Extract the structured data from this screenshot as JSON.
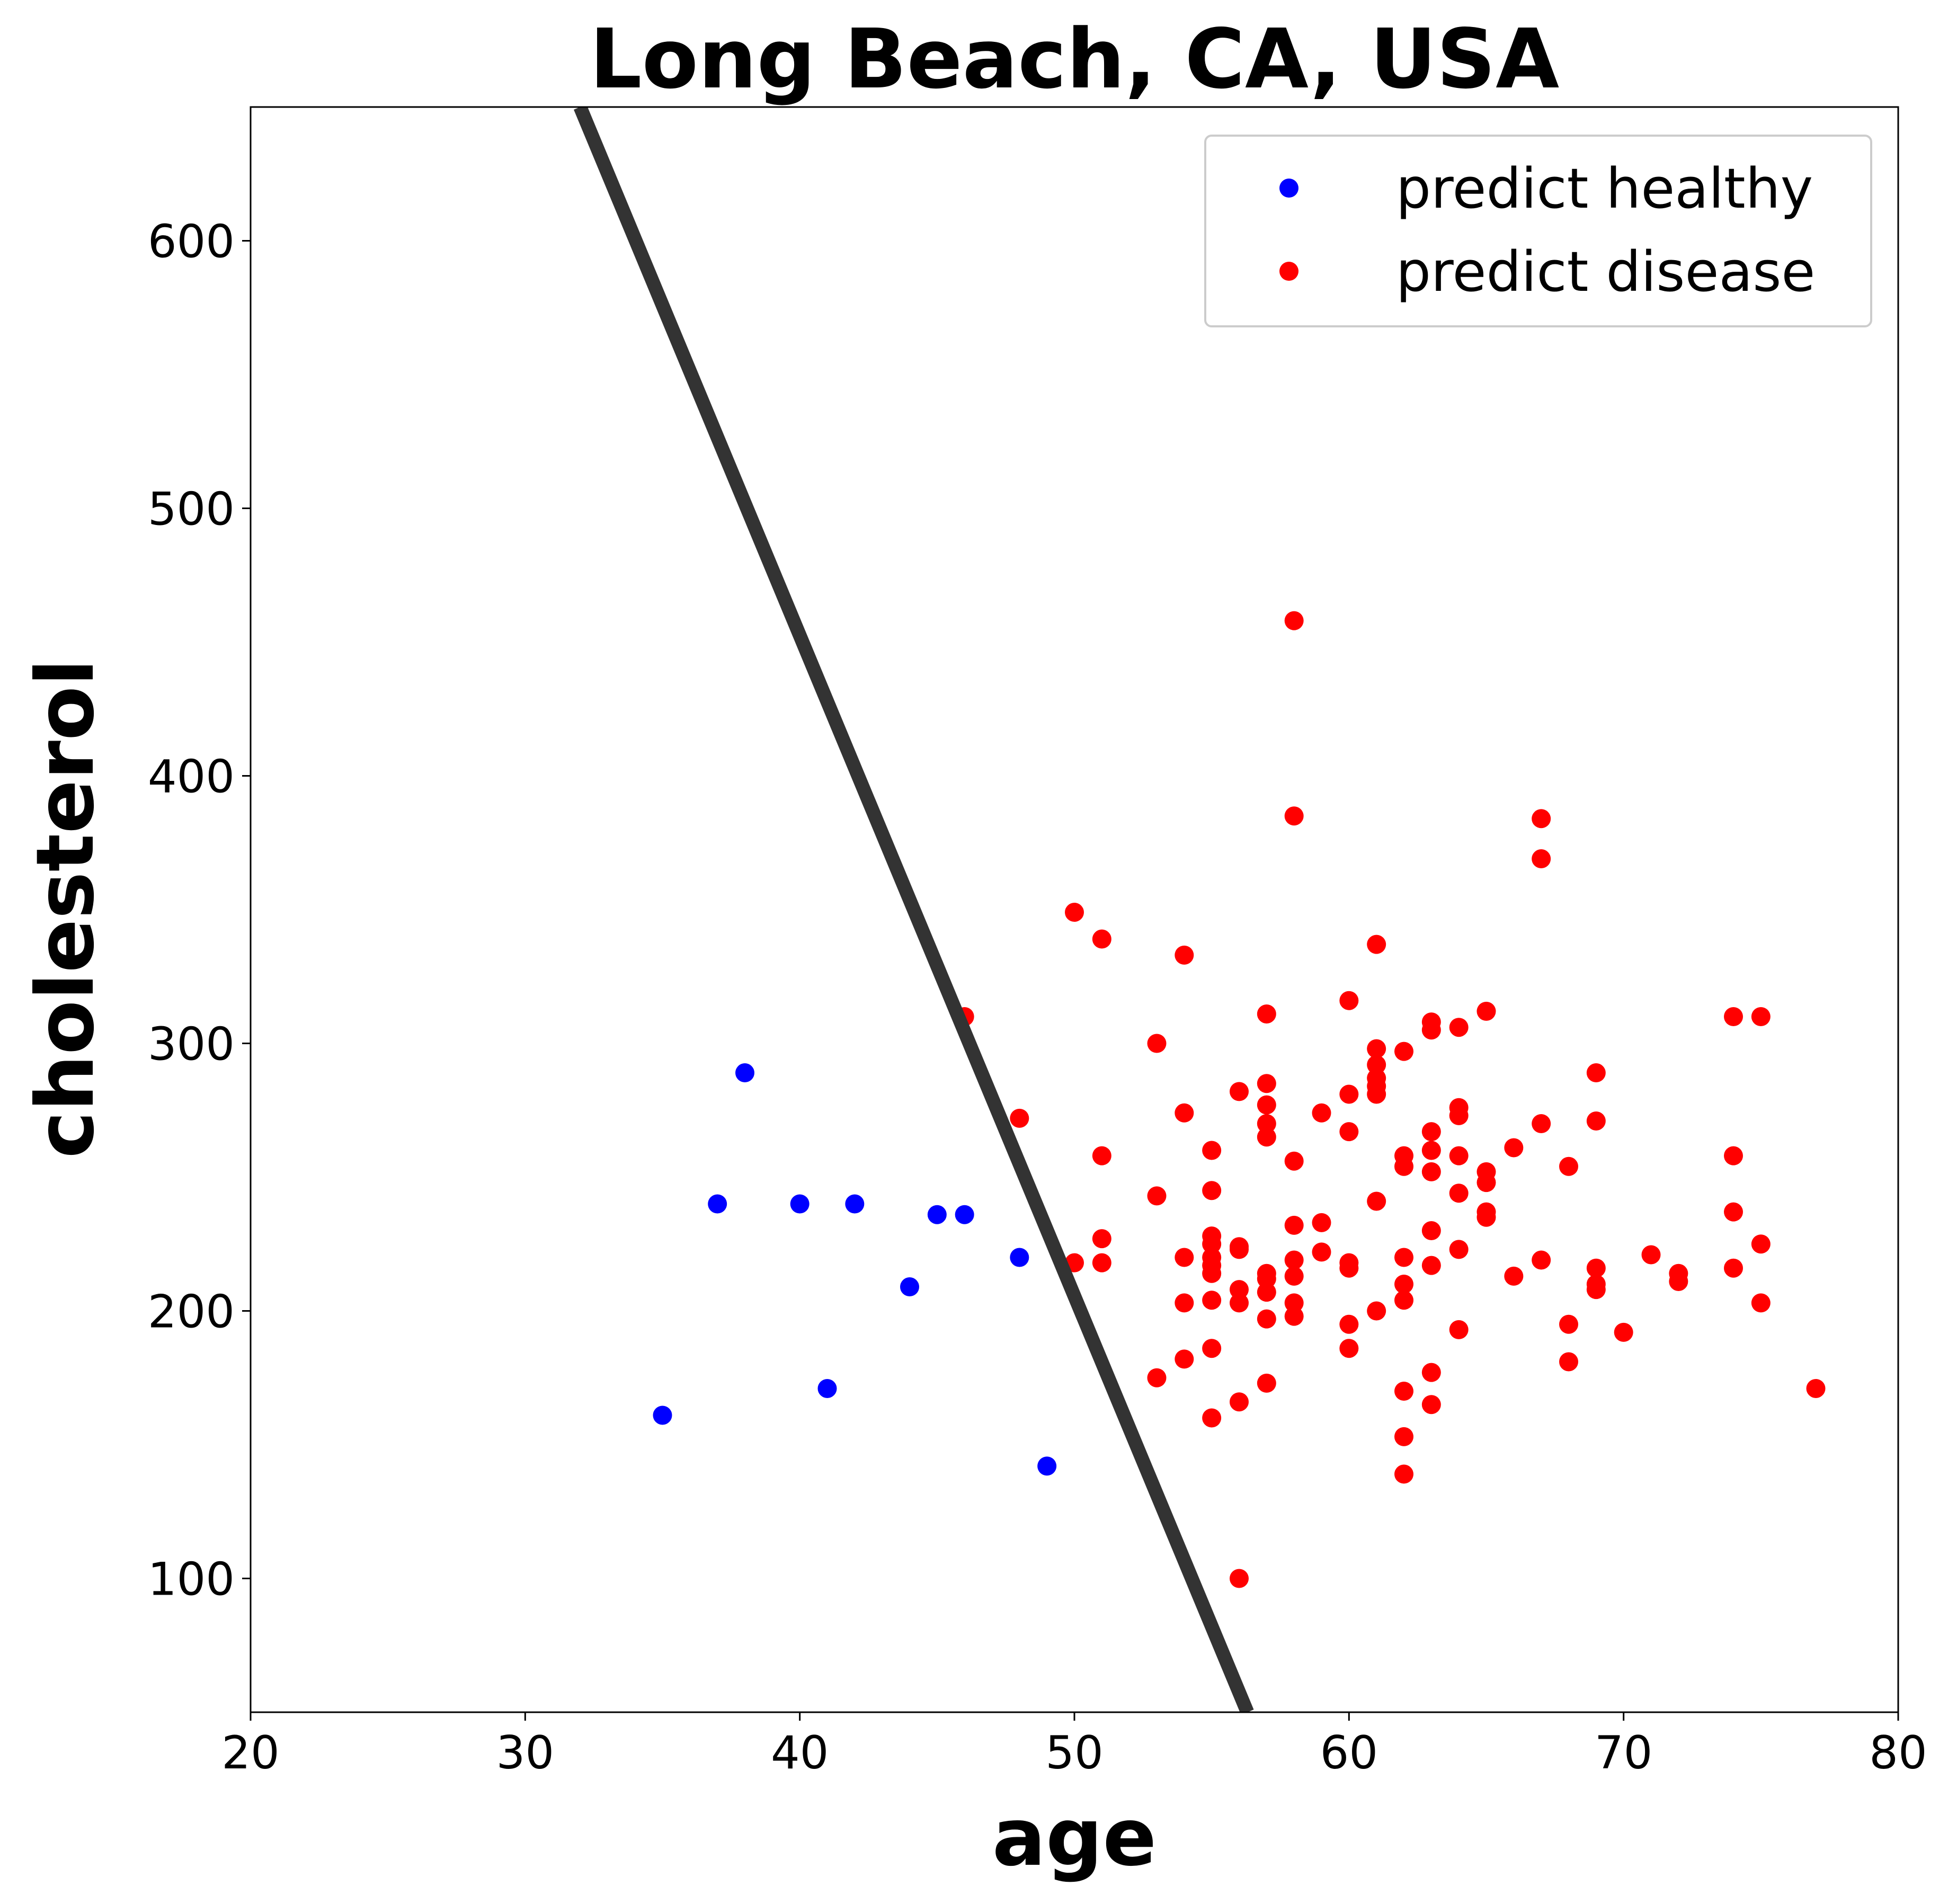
{
  "chart_data": {
    "type": "scatter",
    "title": "Long Beach, CA, USA",
    "xlabel": "age",
    "ylabel": "cholesterol",
    "xlim": [
      20,
      80
    ],
    "ylim": [
      50,
      650
    ],
    "xticks": [
      20,
      30,
      40,
      50,
      60,
      70,
      80
    ],
    "yticks": [
      100,
      200,
      300,
      400,
      500,
      600
    ],
    "grid": false,
    "legend_position": "top-right",
    "decision_boundary": {
      "color": "#333333",
      "points": [
        [
          32.0,
          650
        ],
        [
          56.3,
          50
        ]
      ]
    },
    "series": [
      {
        "name": "predict healthy",
        "color": "#0000ff",
        "points": [
          [
            35,
            161
          ],
          [
            37,
            240
          ],
          [
            38,
            289
          ],
          [
            40,
            240
          ],
          [
            41,
            171
          ],
          [
            42,
            240
          ],
          [
            44,
            209
          ],
          [
            45,
            236
          ],
          [
            46,
            236
          ],
          [
            48,
            220
          ],
          [
            49,
            142
          ]
        ]
      },
      {
        "name": "predict disease",
        "color": "#ff0000",
        "points": [
          [
            46,
            310
          ],
          [
            48,
            272
          ],
          [
            50,
            349
          ],
          [
            50,
            218
          ],
          [
            51,
            339
          ],
          [
            51,
            258
          ],
          [
            51,
            227
          ],
          [
            51,
            218
          ],
          [
            53,
            300
          ],
          [
            53,
            243
          ],
          [
            53,
            175
          ],
          [
            54,
            333
          ],
          [
            54,
            274
          ],
          [
            54,
            220
          ],
          [
            54,
            203
          ],
          [
            54,
            182
          ],
          [
            55,
            260
          ],
          [
            55,
            245
          ],
          [
            55,
            228
          ],
          [
            55,
            225
          ],
          [
            55,
            220
          ],
          [
            55,
            217
          ],
          [
            55,
            214
          ],
          [
            55,
            204
          ],
          [
            55,
            186
          ],
          [
            55,
            160
          ],
          [
            56,
            282
          ],
          [
            56,
            224
          ],
          [
            56,
            223
          ],
          [
            56,
            208
          ],
          [
            56,
            203
          ],
          [
            56,
            166
          ],
          [
            56,
            100
          ],
          [
            57,
            311
          ],
          [
            57,
            285
          ],
          [
            57,
            277
          ],
          [
            57,
            270
          ],
          [
            57,
            265
          ],
          [
            57,
            214
          ],
          [
            57,
            212
          ],
          [
            57,
            207
          ],
          [
            57,
            197
          ],
          [
            57,
            173
          ],
          [
            58,
            458
          ],
          [
            58,
            385
          ],
          [
            58,
            256
          ],
          [
            58,
            232
          ],
          [
            58,
            219
          ],
          [
            58,
            213
          ],
          [
            58,
            203
          ],
          [
            58,
            198
          ],
          [
            59,
            274
          ],
          [
            59,
            233
          ],
          [
            59,
            222
          ],
          [
            60,
            316
          ],
          [
            60,
            281
          ],
          [
            60,
            267
          ],
          [
            60,
            218
          ],
          [
            60,
            216
          ],
          [
            60,
            195
          ],
          [
            60,
            186
          ],
          [
            61,
            337
          ],
          [
            61,
            298
          ],
          [
            61,
            292
          ],
          [
            61,
            287
          ],
          [
            61,
            284
          ],
          [
            61,
            281
          ],
          [
            61,
            241
          ],
          [
            61,
            200
          ],
          [
            62,
            297
          ],
          [
            62,
            258
          ],
          [
            62,
            254
          ],
          [
            62,
            220
          ],
          [
            62,
            210
          ],
          [
            62,
            204
          ],
          [
            62,
            170
          ],
          [
            62,
            153
          ],
          [
            62,
            139
          ],
          [
            63,
            308
          ],
          [
            63,
            305
          ],
          [
            63,
            267
          ],
          [
            63,
            260
          ],
          [
            63,
            252
          ],
          [
            63,
            230
          ],
          [
            63,
            217
          ],
          [
            63,
            177
          ],
          [
            63,
            165
          ],
          [
            64,
            306
          ],
          [
            64,
            276
          ],
          [
            64,
            273
          ],
          [
            64,
            258
          ],
          [
            64,
            244
          ],
          [
            64,
            223
          ],
          [
            64,
            193
          ],
          [
            65,
            312
          ],
          [
            65,
            252
          ],
          [
            65,
            248
          ],
          [
            65,
            237
          ],
          [
            65,
            235
          ],
          [
            66,
            261
          ],
          [
            66,
            213
          ],
          [
            67,
            384
          ],
          [
            67,
            369
          ],
          [
            67,
            270
          ],
          [
            67,
            219
          ],
          [
            68,
            254
          ],
          [
            68,
            195
          ],
          [
            68,
            181
          ],
          [
            69,
            289
          ],
          [
            69,
            271
          ],
          [
            69,
            216
          ],
          [
            69,
            210
          ],
          [
            69,
            208
          ],
          [
            70,
            192
          ],
          [
            71,
            221
          ],
          [
            72,
            214
          ],
          [
            72,
            211
          ],
          [
            74,
            310
          ],
          [
            74,
            258
          ],
          [
            74,
            237
          ],
          [
            74,
            216
          ],
          [
            75,
            310
          ],
          [
            75,
            225
          ],
          [
            75,
            203
          ],
          [
            77,
            171
          ]
        ]
      }
    ]
  }
}
